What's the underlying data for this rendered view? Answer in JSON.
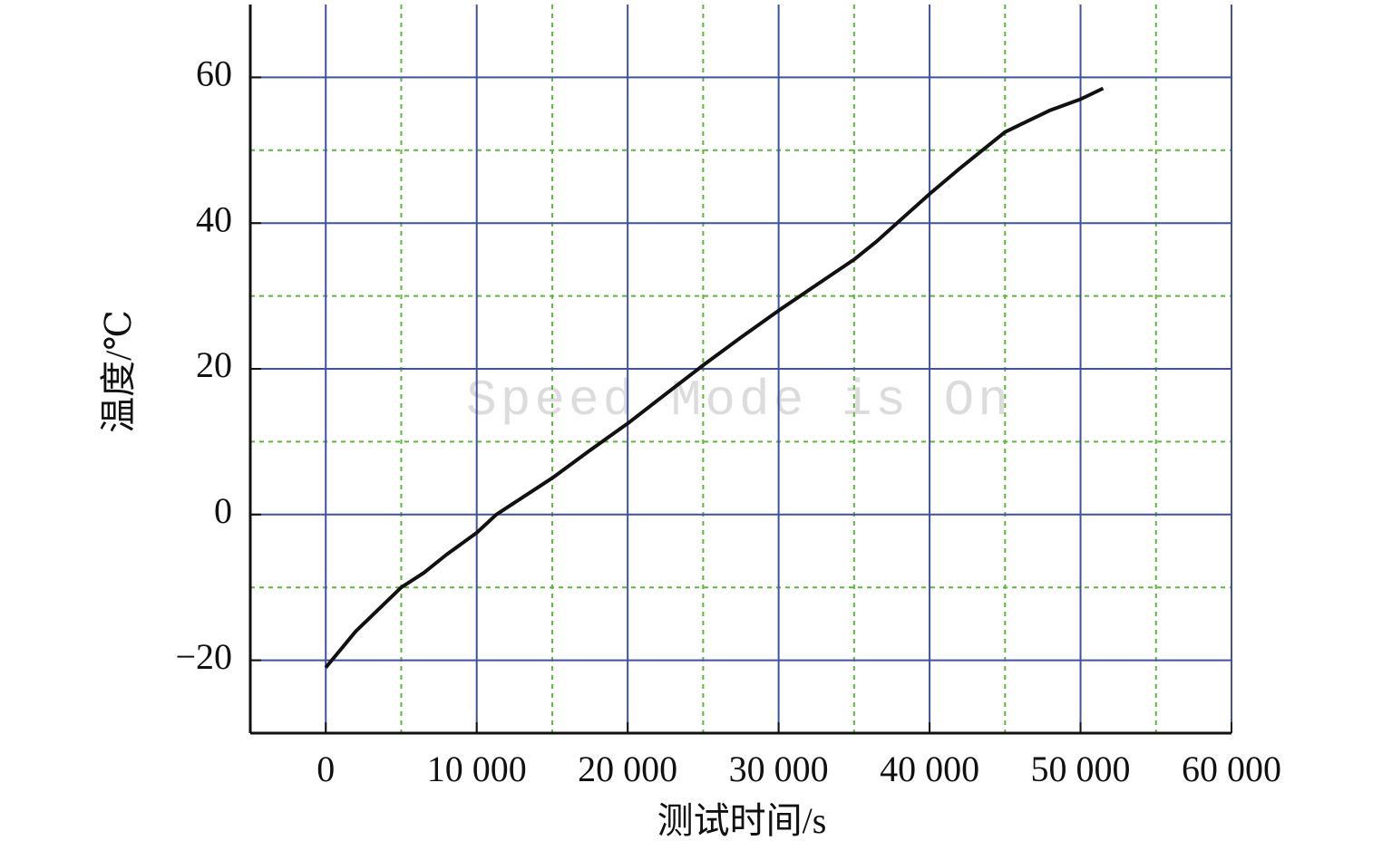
{
  "chart_data": {
    "type": "line",
    "x_label": "测试时间/s",
    "y_label": "温度/℃",
    "annotation": "Speed Mode is On",
    "xlim": [
      -5000,
      60000
    ],
    "ylim": [
      -30,
      70
    ],
    "xticks": [
      0,
      {
        "value": 10000,
        "label": "10 000"
      },
      {
        "value": 20000,
        "label": "20 000"
      },
      {
        "value": 30000,
        "label": "30 000"
      },
      {
        "value": 40000,
        "label": "40 000"
      },
      {
        "value": 50000,
        "label": "50 000"
      },
      {
        "value": 60000,
        "label": "60 000"
      }
    ],
    "yticks": [
      {
        "value": -20,
        "label": "−20"
      },
      0,
      20,
      40,
      60
    ],
    "x_minor_grid": [
      5000,
      15000,
      25000,
      35000,
      45000,
      55000
    ],
    "y_minor_grid": [
      -10,
      10,
      30,
      50
    ],
    "grid": true,
    "major_grid_color": "#3f51a0",
    "minor_grid_color": "#5cb83a",
    "series": [
      {
        "color": "#111111",
        "x": [
          0,
          1000,
          2000,
          3500,
          5000,
          6500,
          8000,
          10000,
          11300,
          13000,
          15000,
          17500,
          20000,
          22500,
          25000,
          27500,
          30000,
          32500,
          35000,
          36500,
          38000,
          40000,
          42000,
          43500,
          45000,
          46500,
          48000,
          50000,
          51500
        ],
        "values": [
          -21,
          -18.5,
          -16,
          -13,
          -10,
          -8,
          -5.5,
          -2.5,
          0,
          2.3,
          5,
          8.8,
          12.5,
          16.5,
          20.5,
          24.3,
          28,
          31.5,
          35,
          37.5,
          40.3,
          44,
          47.5,
          50,
          52.5,
          54,
          55.5,
          57,
          58.5
        ]
      }
    ]
  }
}
